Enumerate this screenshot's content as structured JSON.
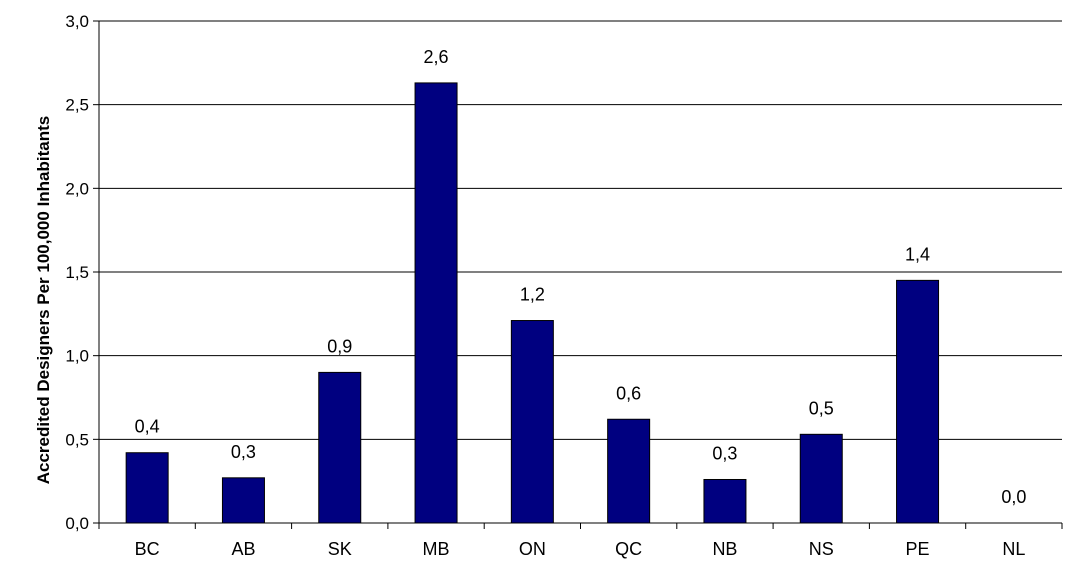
{
  "chart_data": {
    "type": "bar",
    "title": "",
    "xlabel": "",
    "ylabel": "Accredited Designers Per 100,000 Inhabitants",
    "ylim": [
      0,
      3.0
    ],
    "y_ticks": [
      "0,0",
      "0,5",
      "1,0",
      "1,5",
      "2,0",
      "2,5",
      "3,0"
    ],
    "grid": "horizontal",
    "legend": "none",
    "categories": [
      "BC",
      "AB",
      "SK",
      "MB",
      "ON",
      "QC",
      "NB",
      "NS",
      "PE",
      "NL"
    ],
    "values": [
      0.42,
      0.27,
      0.9,
      2.63,
      1.21,
      0.62,
      0.26,
      0.53,
      1.45,
      0.0
    ],
    "data_labels": [
      "0,4",
      "0,3",
      "0,9",
      "2,6",
      "1,2",
      "0,6",
      "0,3",
      "0,5",
      "1,4",
      "0,0"
    ],
    "bar_color": "#000080",
    "bar_edge_color": "#000000"
  }
}
